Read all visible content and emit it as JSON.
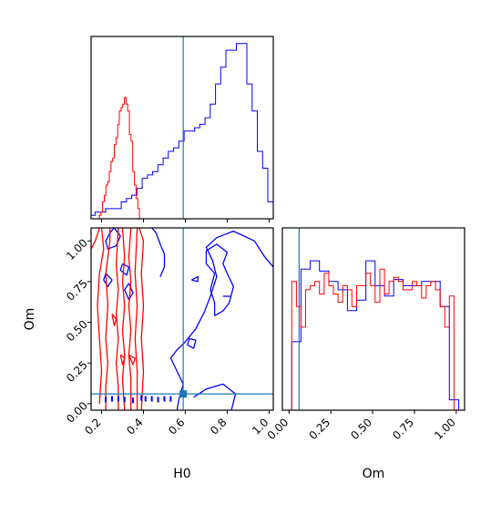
{
  "colors": {
    "series_a": "#0000ff",
    "series_b": "#ff0000",
    "truth": "#1f77b4",
    "axes": "#000000"
  },
  "chart_data": [
    {
      "panel": "H0 marginal histogram",
      "type": "histogram",
      "xlim": [
        0.15,
        1.02
      ],
      "grid": false,
      "truth_x": 0.59,
      "series": [
        {
          "color": "#0000ff",
          "edges": [
            0.08,
            0.119,
            0.144,
            0.169,
            0.194,
            0.219,
            0.244,
            0.269,
            0.294,
            0.319,
            0.344,
            0.369,
            0.394,
            0.419,
            0.444,
            0.469,
            0.494,
            0.519,
            0.544,
            0.569,
            0.594,
            0.619,
            0.644,
            0.669,
            0.694,
            0.719,
            0.744,
            0.769,
            0.794,
            0.819,
            0.844,
            0.869,
            0.894,
            0.919,
            0.944,
            0.969,
            0.994,
            1.02
          ],
          "values": [
            0,
            1,
            1,
            2,
            2,
            3,
            3,
            3,
            5,
            6,
            7,
            9,
            12,
            13,
            14,
            16,
            18,
            20,
            21,
            23,
            26,
            26,
            27,
            28,
            30,
            34,
            40,
            45,
            50,
            50,
            52,
            52,
            40,
            32,
            20,
            15,
            5
          ]
        },
        {
          "color": "#ff0000",
          "edges": [
            0.08,
            0.19,
            0.197,
            0.205,
            0.213,
            0.221,
            0.229,
            0.237,
            0.245,
            0.253,
            0.261,
            0.269,
            0.277,
            0.285,
            0.293,
            0.301,
            0.309,
            0.317,
            0.325,
            0.333,
            0.341,
            0.349,
            0.357,
            0.365,
            0.373,
            0.381
          ],
          "values": [
            0,
            1,
            2,
            5,
            7,
            10,
            11,
            14,
            17,
            18,
            22,
            24,
            28,
            32,
            33,
            34,
            36,
            34,
            32,
            25,
            23,
            14,
            10,
            6,
            3
          ]
        }
      ]
    },
    {
      "panel": "Om marginal histogram",
      "type": "histogram",
      "xlabel": "Om",
      "xlim": [
        -0.04,
        1.05
      ],
      "xticks": [
        "0.00",
        "0.25",
        "0.50",
        "0.75",
        "1.00"
      ],
      "truth_x": 0.06,
      "series": [
        {
          "color": "#0000ff",
          "edges": [
            -0.04,
            0.016,
            0.071,
            0.127,
            0.182,
            0.238,
            0.293,
            0.349,
            0.404,
            0.46,
            0.515,
            0.571,
            0.626,
            0.682,
            0.737,
            0.793,
            0.848,
            0.904,
            0.959,
            1.015,
            1.05
          ],
          "values": [
            0,
            0.33,
            0.68,
            0.72,
            0.67,
            0.62,
            0.58,
            0.48,
            0.53,
            0.72,
            0.6,
            0.55,
            0.63,
            0.6,
            0.6,
            0.62,
            0.62,
            0.5,
            0.05,
            0
          ]
        },
        {
          "color": "#ff0000",
          "edges": [
            -0.04,
            0.016,
            0.044,
            0.071,
            0.099,
            0.127,
            0.154,
            0.182,
            0.21,
            0.238,
            0.265,
            0.293,
            0.321,
            0.349,
            0.376,
            0.404,
            0.432,
            0.46,
            0.487,
            0.515,
            0.543,
            0.571,
            0.598,
            0.626,
            0.654,
            0.682,
            0.709,
            0.737,
            0.765,
            0.793,
            0.82,
            0.848,
            0.876,
            0.904,
            0.932,
            0.959,
            0.987,
            1.05
          ],
          "values": [
            0,
            0.62,
            0.5,
            0.4,
            0.58,
            0.6,
            0.62,
            0.56,
            0.66,
            0.6,
            0.56,
            0.52,
            0.6,
            0.58,
            0.5,
            0.6,
            0.6,
            0.66,
            0.6,
            0.52,
            0.68,
            0.56,
            0.62,
            0.64,
            0.62,
            0.58,
            0.58,
            0.62,
            0.6,
            0.54,
            0.6,
            0.62,
            0.58,
            0.5,
            0.4,
            0.55,
            0
          ]
        }
      ]
    },
    {
      "panel": "H0 vs Om contours",
      "type": "contour",
      "xlabel": "H0",
      "ylabel": "Om",
      "xlim": [
        0.15,
        1.02
      ],
      "ylim": [
        -0.04,
        1.08
      ],
      "xticks": [
        "0.2",
        "0.4",
        "0.6",
        "0.8",
        "1.0"
      ],
      "yticks": [
        "0.00",
        "0.25",
        "0.50",
        "0.75",
        "1.00"
      ],
      "truth": {
        "x": 0.59,
        "y": 0.06
      },
      "series": [
        {
          "color": "#0000ff",
          "contours": [
            [
              [
                0.44,
                1.08
              ],
              [
                0.46,
                1.05
              ],
              [
                0.48,
                0.98
              ],
              [
                0.5,
                0.92
              ],
              [
                0.5,
                0.84
              ],
              [
                0.48,
                0.78
              ]
            ],
            [
              [
                0.56,
                -0.04
              ],
              [
                0.57,
                0.03
              ],
              [
                0.59,
                0.12
              ],
              [
                0.56,
                0.2
              ],
              [
                0.53,
                0.28
              ],
              [
                0.56,
                0.33
              ],
              [
                0.6,
                0.38
              ],
              [
                0.65,
                0.46
              ],
              [
                0.69,
                0.56
              ],
              [
                0.72,
                0.66
              ],
              [
                0.75,
                0.78
              ],
              [
                0.73,
                0.88
              ],
              [
                0.7,
                0.96
              ],
              [
                0.75,
                1.02
              ],
              [
                0.83,
                1.06
              ],
              [
                0.93,
                1.0
              ],
              [
                0.98,
                0.9
              ],
              [
                1.02,
                0.84
              ]
            ],
            [
              [
                0.64,
                0.04
              ],
              [
                0.7,
                0.09
              ],
              [
                0.78,
                0.12
              ],
              [
                0.84,
                0.06
              ],
              [
                0.82,
                -0.04
              ]
            ],
            [
              [
                0.61,
                0.36
              ],
              [
                0.64,
                0.34
              ],
              [
                0.65,
                0.39
              ],
              [
                0.62,
                0.4
              ],
              [
                0.61,
                0.36
              ]
            ],
            [
              [
                0.74,
                0.54
              ],
              [
                0.78,
                0.57
              ],
              [
                0.81,
                0.62
              ],
              [
                0.83,
                0.72
              ],
              [
                0.8,
                0.8
              ],
              [
                0.78,
                0.86
              ],
              [
                0.8,
                0.93
              ],
              [
                0.75,
                0.98
              ],
              [
                0.7,
                0.94
              ],
              [
                0.7,
                0.86
              ],
              [
                0.74,
                0.8
              ],
              [
                0.72,
                0.7
              ],
              [
                0.74,
                0.62
              ],
              [
                0.74,
                0.54
              ]
            ],
            [
              [
                0.63,
                0.76
              ],
              [
                0.66,
                0.78
              ],
              [
                0.66,
                0.75
              ],
              [
                0.63,
                0.76
              ]
            ],
            [
              [
                0.78,
                0.66
              ],
              [
                0.82,
                0.66
              ]
            ],
            [
              [
                0.26,
                1.08
              ],
              [
                0.29,
                1.03
              ],
              [
                0.27,
                0.97
              ],
              [
                0.23,
                0.95
              ],
              [
                0.22,
                1.0
              ],
              [
                0.24,
                1.05
              ],
              [
                0.26,
                1.08
              ]
            ],
            [
              [
                0.22,
                0.8
              ],
              [
                0.25,
                0.76
              ],
              [
                0.23,
                0.72
              ],
              [
                0.21,
                0.76
              ],
              [
                0.22,
                0.8
              ]
            ],
            [
              [
                0.33,
                0.74
              ],
              [
                0.35,
                0.68
              ],
              [
                0.33,
                0.64
              ],
              [
                0.31,
                0.7
              ],
              [
                0.33,
                0.74
              ]
            ],
            [
              [
                0.3,
                0.86
              ],
              [
                0.33,
                0.84
              ],
              [
                0.32,
                0.79
              ],
              [
                0.29,
                0.82
              ],
              [
                0.3,
                0.86
              ]
            ]
          ]
        },
        {
          "color": "#ff0000",
          "contours": [
            [
              [
                0.15,
                0.95
              ],
              [
                0.17,
                1.0
              ],
              [
                0.19,
                1.08
              ]
            ],
            [
              [
                0.19,
                0.0
              ],
              [
                0.2,
                0.2
              ],
              [
                0.19,
                0.4
              ],
              [
                0.18,
                0.6
              ],
              [
                0.19,
                0.8
              ],
              [
                0.21,
                0.95
              ],
              [
                0.2,
                1.08
              ]
            ],
            [
              [
                0.22,
                -0.04
              ],
              [
                0.22,
                0.1
              ],
              [
                0.23,
                0.25
              ],
              [
                0.22,
                0.4
              ],
              [
                0.23,
                0.6
              ],
              [
                0.22,
                0.8
              ],
              [
                0.24,
                1.0
              ],
              [
                0.24,
                1.08
              ]
            ],
            [
              [
                0.28,
                -0.04
              ],
              [
                0.28,
                0.1
              ],
              [
                0.27,
                0.25
              ],
              [
                0.28,
                0.4
              ],
              [
                0.27,
                0.55
              ],
              [
                0.28,
                0.7
              ],
              [
                0.27,
                0.85
              ],
              [
                0.28,
                1.08
              ]
            ],
            [
              [
                0.31,
                -0.04
              ],
              [
                0.3,
                0.15
              ],
              [
                0.31,
                0.3
              ],
              [
                0.3,
                0.45
              ],
              [
                0.31,
                0.6
              ],
              [
                0.3,
                0.75
              ],
              [
                0.31,
                0.9
              ],
              [
                0.3,
                1.08
              ]
            ],
            [
              [
                0.34,
                -0.04
              ],
              [
                0.34,
                0.15
              ],
              [
                0.33,
                0.3
              ],
              [
                0.34,
                0.45
              ],
              [
                0.33,
                0.6
              ],
              [
                0.34,
                0.75
              ],
              [
                0.33,
                0.9
              ],
              [
                0.34,
                1.08
              ]
            ],
            [
              [
                0.37,
                -0.04
              ],
              [
                0.37,
                0.2
              ],
              [
                0.36,
                0.4
              ],
              [
                0.37,
                0.6
              ],
              [
                0.36,
                0.8
              ],
              [
                0.37,
                1.08
              ]
            ],
            [
              [
                0.39,
                -0.04
              ],
              [
                0.4,
                0.2
              ],
              [
                0.39,
                0.4
              ],
              [
                0.4,
                0.6
              ],
              [
                0.39,
                0.8
              ],
              [
                0.4,
                1.0
              ],
              [
                0.38,
                1.08
              ]
            ],
            [
              [
                0.25,
                0.55
              ],
              [
                0.27,
                0.52
              ],
              [
                0.26,
                0.48
              ],
              [
                0.25,
                0.55
              ]
            ],
            [
              [
                0.29,
                0.3
              ],
              [
                0.31,
                0.28
              ],
              [
                0.3,
                0.24
              ],
              [
                0.29,
                0.3
              ]
            ],
            [
              [
                0.33,
                0.3
              ],
              [
                0.36,
                0.28
              ],
              [
                0.35,
                0.24
              ],
              [
                0.33,
                0.3
              ]
            ]
          ]
        }
      ],
      "scatter": {
        "color": "#0000ff",
        "points": [
          [
            0.47,
            0.025
          ],
          [
            0.53,
            0.03
          ],
          [
            0.41,
            0.03
          ],
          [
            0.35,
            0.02
          ],
          [
            0.31,
            0.025
          ],
          [
            0.28,
            0.03
          ],
          [
            0.25,
            0.03
          ],
          [
            0.22,
            0.025
          ],
          [
            0.39,
            0.035
          ],
          [
            0.44,
            0.03
          ],
          [
            0.5,
            0.03
          ]
        ]
      }
    }
  ]
}
